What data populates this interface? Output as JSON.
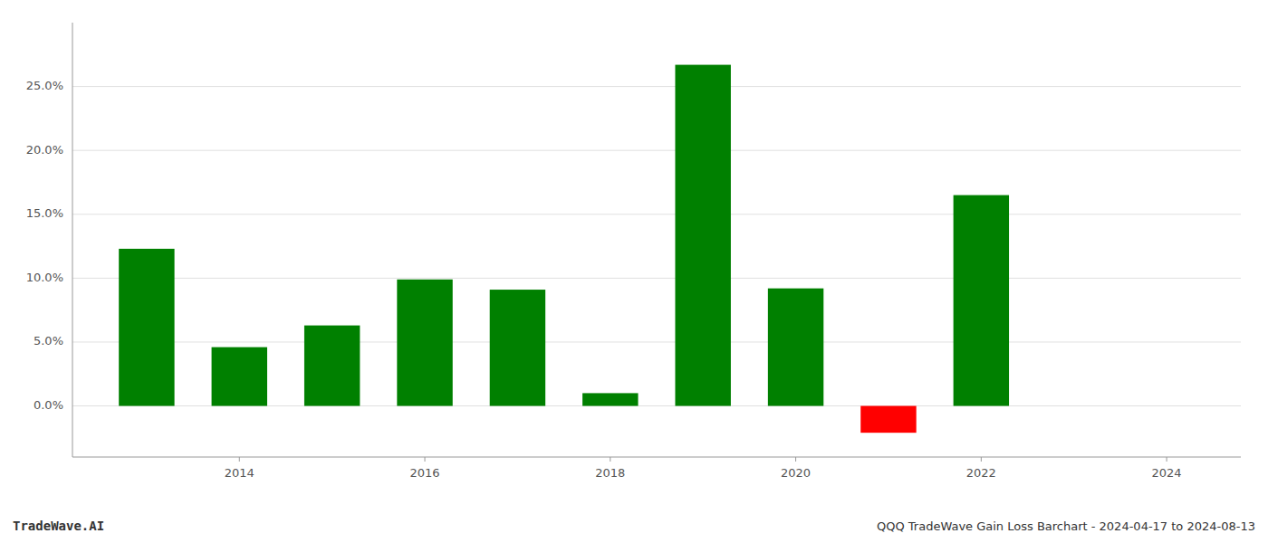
{
  "chart_data": {
    "type": "bar",
    "title": "QQQ TradeWave Gain Loss Barchart - 2024-04-17 to 2024-08-13",
    "annotations": [
      "TradeWave.AI"
    ],
    "x": [
      2013,
      2014,
      2015,
      2016,
      2017,
      2018,
      2019,
      2020,
      2021,
      2022,
      2023
    ],
    "values": [
      0.123,
      0.046,
      0.063,
      0.099,
      0.091,
      0.01,
      0.267,
      0.092,
      -0.021,
      0.165,
      0.0
    ],
    "colors": [
      "#008000",
      "#008000",
      "#008000",
      "#008000",
      "#008000",
      "#008000",
      "#008000",
      "#008000",
      "#ff0000",
      "#008000",
      "#008000"
    ],
    "xlim": [
      2012.2,
      2024.8
    ],
    "xticks": [
      2014,
      2016,
      2018,
      2020,
      2022,
      2024
    ],
    "ylim": [
      -0.04,
      0.3
    ],
    "yticks": [
      {
        "value": 0.0,
        "label": "0.0%"
      },
      {
        "value": 0.05,
        "label": "5.0%"
      },
      {
        "value": 0.1,
        "label": "10.0%"
      },
      {
        "value": 0.15,
        "label": "15.0%"
      },
      {
        "value": 0.2,
        "label": "20.0%"
      },
      {
        "value": 0.25,
        "label": "25.0%"
      }
    ],
    "grid": true
  }
}
